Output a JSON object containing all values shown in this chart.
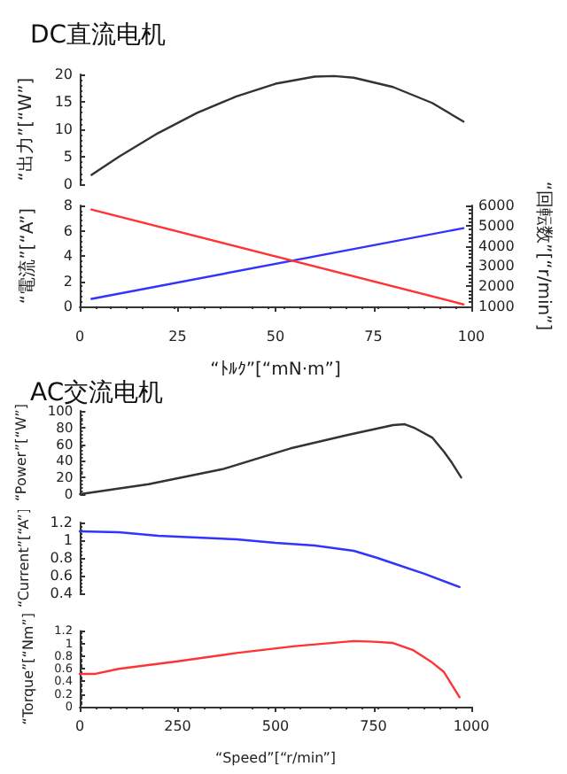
{
  "chart_data": [
    {
      "type": "line",
      "title": "DC直流电机",
      "ylabel": "“出力”[“W”]",
      "xlim": [
        0,
        100
      ],
      "xticks": [
        0,
        25,
        50,
        75,
        100
      ],
      "ylim": [
        0,
        20
      ],
      "yticks": [
        0,
        5,
        10,
        15,
        20
      ],
      "tick_labels": "y",
      "grid": false,
      "marker": "none",
      "series": [
        {
          "color": "#333333",
          "x": [
            3,
            10,
            20,
            30,
            40,
            50,
            60,
            65,
            70,
            80,
            90,
            98
          ],
          "values": [
            1.7,
            5,
            9.3,
            13,
            16,
            18.3,
            19.6,
            19.7,
            19.4,
            17.7,
            14.8,
            11.4
          ]
        }
      ]
    },
    {
      "type": "line",
      "xlabel": "“ﾄﾙｸ”[“mN·m”]",
      "ylabel": "“電流”[“A”]",
      "y2label": "“回転数”[“r/min”]",
      "xlim": [
        0,
        100
      ],
      "xticks": [
        0,
        25,
        50,
        75,
        100
      ],
      "ylim": [
        0,
        8
      ],
      "yticks": [
        0,
        2,
        4,
        6,
        8
      ],
      "y2lim": [
        1000,
        6000
      ],
      "y2ticks": [
        1000,
        2000,
        3000,
        4000,
        5000,
        6000
      ],
      "grid": false,
      "marker": "none",
      "series": [
        {
          "color": "#3333ff",
          "x": [
            3,
            98
          ],
          "values": [
            0.6,
            6.2
          ]
        },
        {
          "color": "#ff3333",
          "axis": "y2",
          "x": [
            3,
            98
          ],
          "values": [
            5800,
            1100
          ]
        }
      ]
    },
    {
      "type": "line",
      "title": "AC交流电机",
      "ylabel": "“Power”[“W”]",
      "xlim": [
        0,
        1000
      ],
      "xticks": [
        0,
        250,
        500,
        750,
        1000
      ],
      "ylim": [
        0,
        100
      ],
      "yticks": [
        0,
        20,
        40,
        60,
        80,
        100
      ],
      "tick_labels": "y",
      "grid": false,
      "marker": "none",
      "series": [
        {
          "color": "#333333",
          "x": [
            0,
            175,
            364,
            538,
            683,
            800,
            830,
            857,
            900,
            930,
            950,
            974
          ],
          "values": [
            0,
            12,
            30,
            55,
            71,
            83,
            84,
            79,
            68,
            51,
            38,
            20
          ]
        }
      ]
    },
    {
      "type": "line",
      "ylabel": "“Current”[“A”]",
      "xlim": [
        0,
        1000
      ],
      "xticks": [
        0,
        250,
        500,
        750,
        1000
      ],
      "ylim": [
        0.4,
        1.2
      ],
      "yticks": [
        0.4,
        0.6,
        0.8,
        1,
        1.2
      ],
      "tick_labels": "y",
      "grid": false,
      "marker": "none",
      "series": [
        {
          "color": "#3333ff",
          "x": [
            0,
            100,
            200,
            300,
            400,
            500,
            600,
            700,
            760,
            800,
            880,
            970
          ],
          "values": [
            1.1,
            1.09,
            1.05,
            1.03,
            1.01,
            0.97,
            0.94,
            0.88,
            0.8,
            0.74,
            0.62,
            0.47
          ]
        }
      ]
    },
    {
      "type": "line",
      "xlabel": "“Speed”[“r/min”]",
      "ylabel": "“Torque”[“Nm”]",
      "xlim": [
        0,
        1000
      ],
      "xticks": [
        0,
        250,
        500,
        750,
        1000
      ],
      "ylim": [
        0,
        1.2
      ],
      "yticks": [
        0,
        0.2,
        0.4,
        0.6,
        0.8,
        1,
        1.2
      ],
      "grid": false,
      "marker": "none",
      "series": [
        {
          "color": "#ff3333",
          "x": [
            0,
            40,
            100,
            250,
            400,
            550,
            700,
            750,
            800,
            850,
            900,
            930,
            970
          ],
          "values": [
            0.52,
            0.52,
            0.6,
            0.72,
            0.85,
            0.96,
            1.04,
            1.03,
            1.01,
            0.9,
            0.7,
            0.55,
            0.15
          ]
        }
      ]
    }
  ]
}
